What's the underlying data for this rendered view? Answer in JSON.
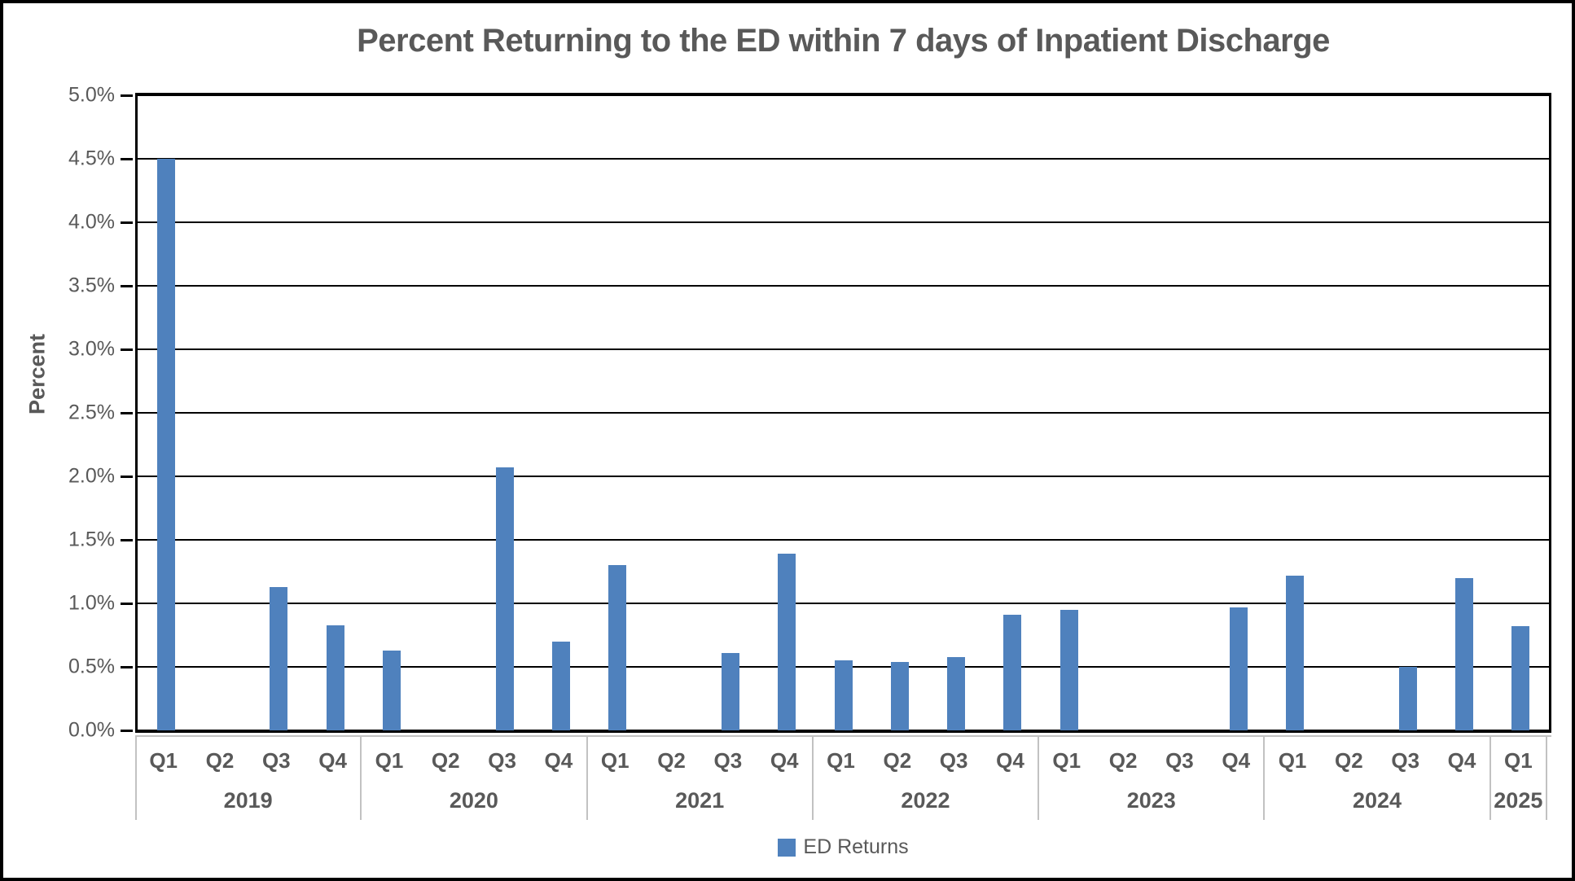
{
  "title": "Percent Returning to the ED within 7 days of Inpatient Discharge",
  "y_axis": {
    "label": "Percent",
    "tick_labels": [
      "5.0%",
      "4.5%",
      "4.0%",
      "3.5%",
      "3.0%",
      "2.5%",
      "2.0%",
      "1.5%",
      "1.0%",
      "0.5%",
      "0.0%"
    ]
  },
  "legend": {
    "label": "ED Returns",
    "swatch_color": "#4F81BD"
  },
  "colors": {
    "bar": "#4F81BD",
    "text": "#595959",
    "gridline": "#000000",
    "band_separator": "#C2C2C2"
  },
  "chart_data": {
    "type": "bar",
    "title": "Percent Returning to the ED within 7 days of Inpatient Discharge",
    "xlabel": "",
    "ylabel": "Percent",
    "ylim": [
      0,
      5
    ],
    "y_step": 0.5,
    "grid": "horizontal",
    "legend_position": "bottom-center",
    "series_name": "ED Returns",
    "unit": "%",
    "groups": [
      {
        "year": "2019",
        "quarters": [
          "Q1",
          "Q2",
          "Q3",
          "Q4"
        ],
        "values": [
          4.5,
          null,
          1.13,
          0.83
        ]
      },
      {
        "year": "2020",
        "quarters": [
          "Q1",
          "Q2",
          "Q3",
          "Q4"
        ],
        "values": [
          0.63,
          null,
          2.07,
          0.7
        ]
      },
      {
        "year": "2021",
        "quarters": [
          "Q1",
          "Q2",
          "Q3",
          "Q4"
        ],
        "values": [
          1.3,
          null,
          0.61,
          1.39
        ]
      },
      {
        "year": "2022",
        "quarters": [
          "Q1",
          "Q2",
          "Q3",
          "Q4"
        ],
        "values": [
          0.55,
          0.54,
          0.58,
          0.91
        ]
      },
      {
        "year": "2023",
        "quarters": [
          "Q1",
          "Q2",
          "Q3",
          "Q4"
        ],
        "values": [
          0.95,
          null,
          null,
          0.97
        ]
      },
      {
        "year": "2024",
        "quarters": [
          "Q1",
          "Q2",
          "Q3",
          "Q4"
        ],
        "values": [
          1.22,
          null,
          0.5,
          1.2
        ]
      },
      {
        "year": "2025",
        "quarters": [
          "Q1"
        ],
        "values": [
          0.82
        ]
      }
    ]
  }
}
